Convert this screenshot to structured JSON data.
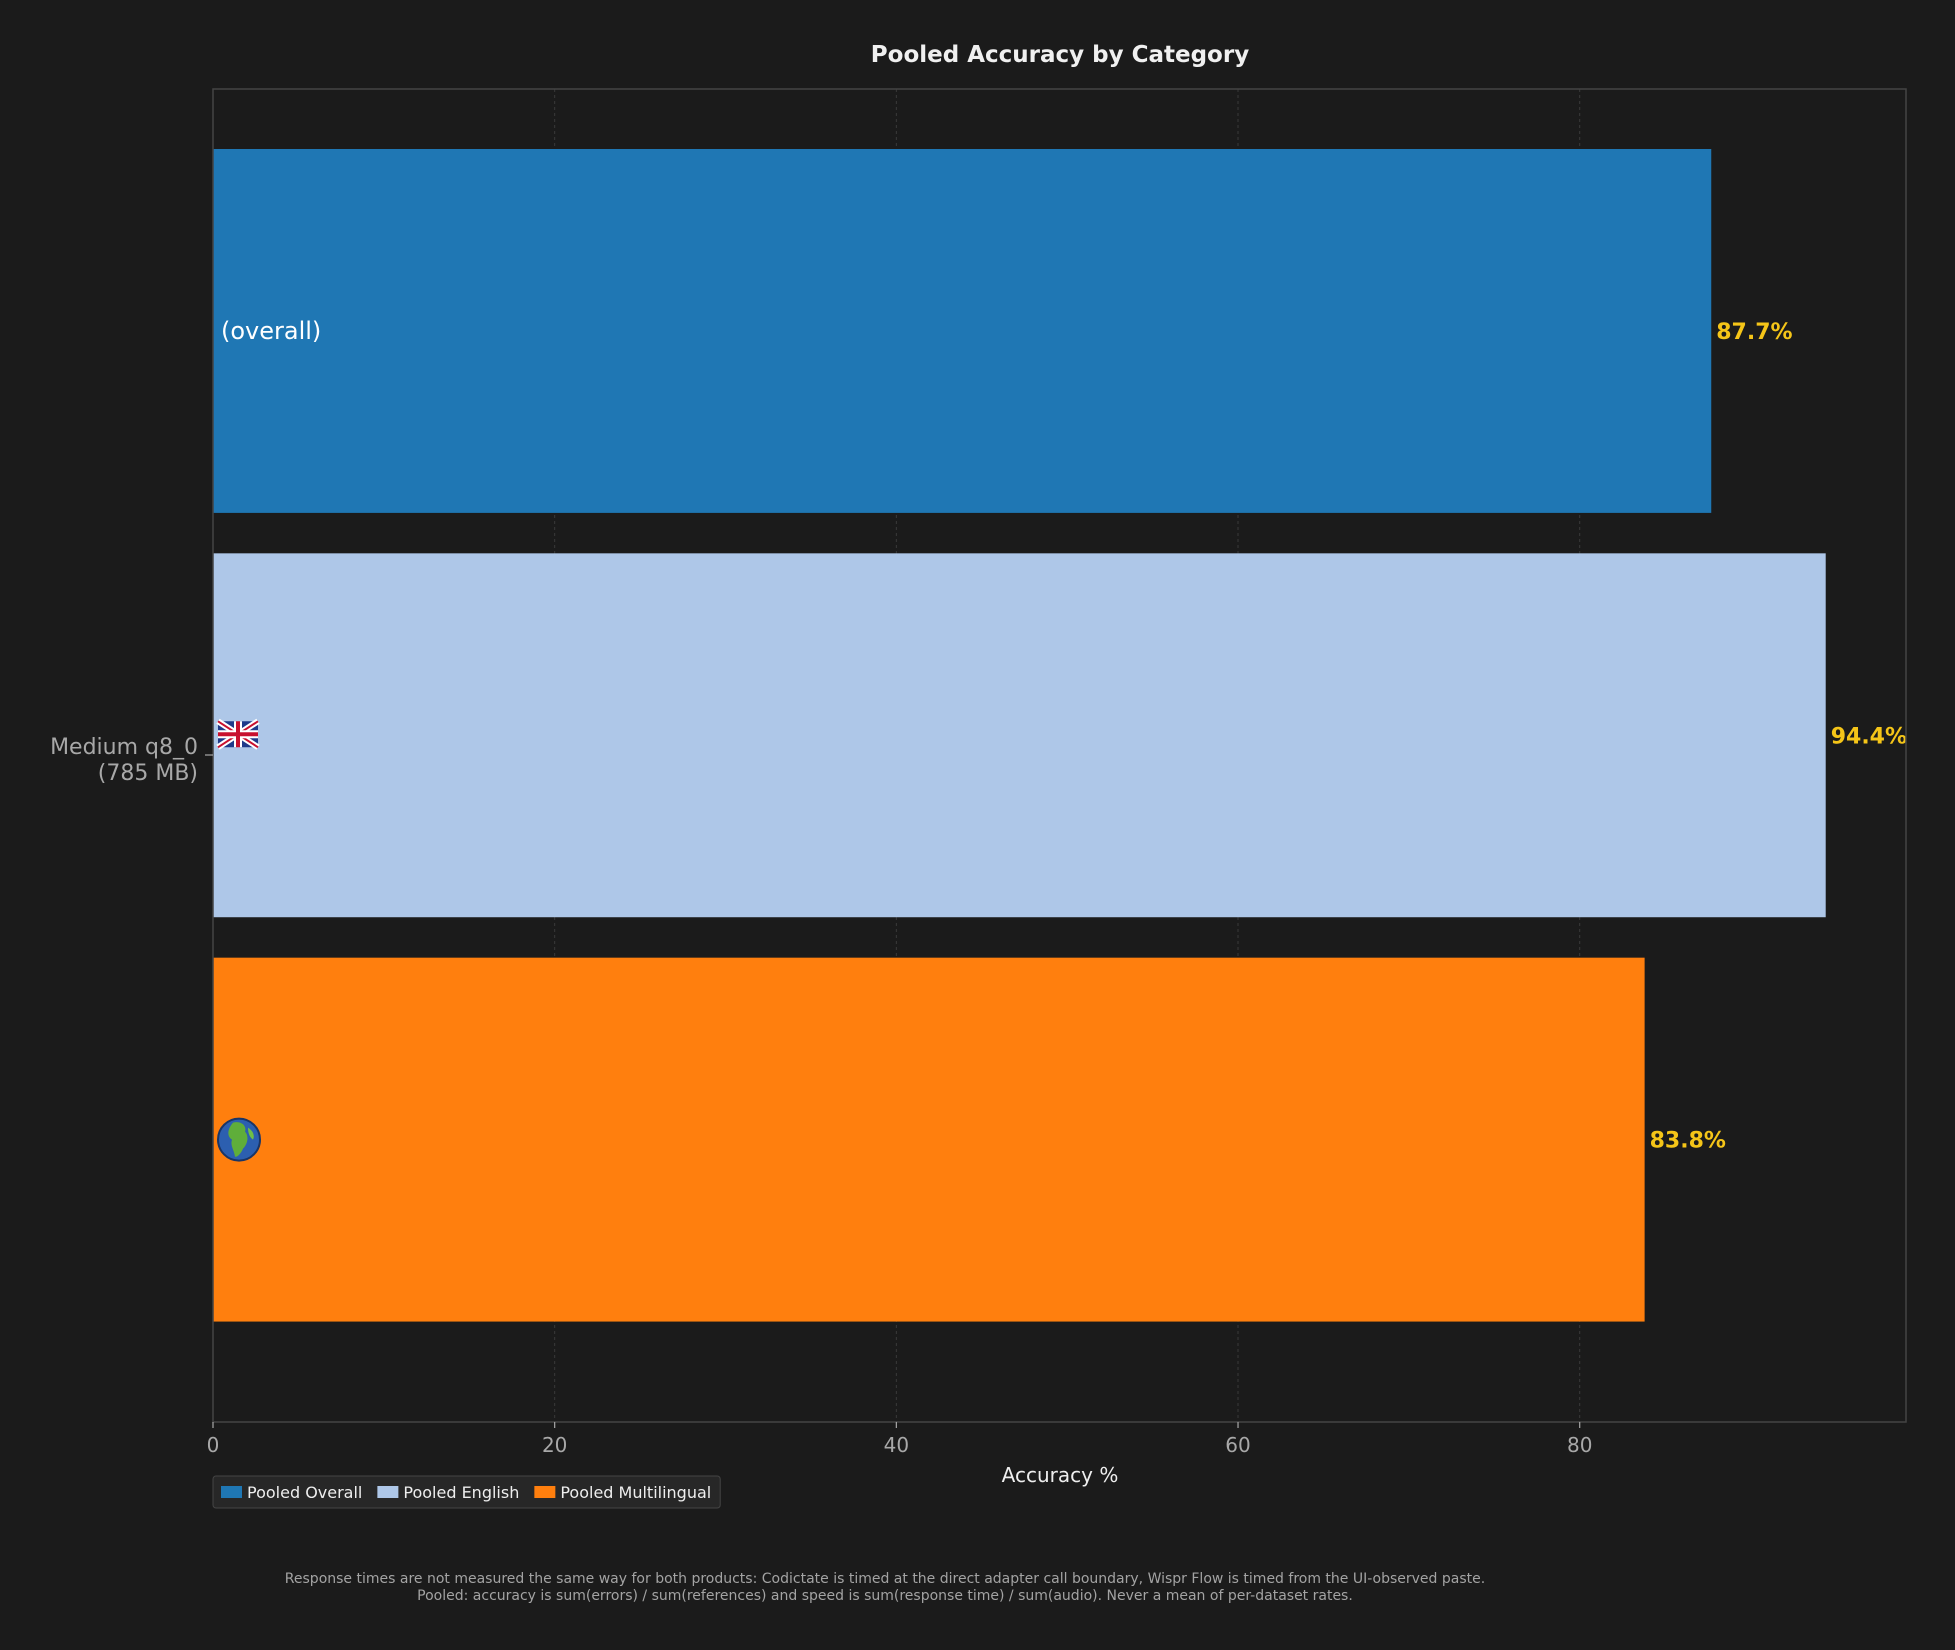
{
  "chart_data": {
    "type": "bar",
    "orientation": "horizontal",
    "title": "Pooled Accuracy by Category",
    "xlabel": "Accuracy %",
    "ylabel": "",
    "xlim": [
      0,
      99.1
    ],
    "xticks": [
      0,
      20,
      40,
      60,
      80
    ],
    "grid": true,
    "legend_position": "bottom-left",
    "model_label_line1": "Medium q8_0",
    "model_label_line2": "(785 MB)",
    "series": [
      {
        "name": "Pooled Overall",
        "value": 87.7,
        "label": "87.7%",
        "bar_text": "(overall)",
        "bar_icon": "",
        "color": "#1f77b4"
      },
      {
        "name": "Pooled English",
        "value": 94.4,
        "label": "94.4%",
        "bar_text": "",
        "bar_icon": "uk-flag-icon",
        "color": "#aec7e8"
      },
      {
        "name": "Pooled Multilingual",
        "value": 83.8,
        "label": "83.8%",
        "bar_text": "",
        "bar_icon": "globe-icon",
        "color": "#ff7f0e"
      }
    ]
  },
  "colors": {
    "background": "#1b1b1b",
    "value_label": "#f5c518",
    "text": "#eeeeee",
    "muted_text": "#a8a8a8",
    "spine": "#444444"
  },
  "footnote": {
    "line1": "Response times are not measured the same way for both products: Codictate is timed at the direct adapter call boundary, Wispr Flow is timed from the UI-observed paste.",
    "line2": "Pooled: accuracy is sum(errors) / sum(references) and speed is sum(response time) / sum(audio). Never a mean of per-dataset rates."
  }
}
